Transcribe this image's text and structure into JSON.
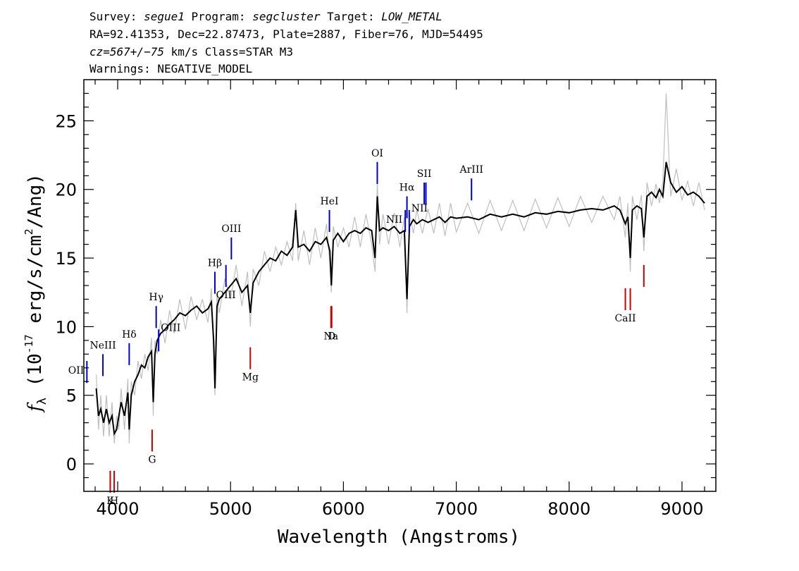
{
  "header": {
    "line1": {
      "survey_label": "Survey: ",
      "survey": "segue1",
      "program_label": " Program: ",
      "program": "segcluster",
      "target_label": " Target: ",
      "target": "LOW_METAL"
    },
    "line2": "RA=92.41353, Dec=22.87473, Plate=2887, Fiber=76, MJD=54495",
    "line3": {
      "cz": "cz=567+/−75",
      "rest": " km/s Class=STAR M3"
    },
    "line4": "Warnings: NEGATIVE_MODEL"
  },
  "chart_data": {
    "type": "line",
    "xlabel": "Wavelength (Angstroms)",
    "ylabel": "f_λ (10^-17 erg/s/cm^2/Ang)",
    "xlim": [
      3700,
      9300
    ],
    "ylim": [
      -2,
      28
    ],
    "xticks": [
      4000,
      5000,
      6000,
      7000,
      8000,
      9000
    ],
    "yticks": [
      0,
      5,
      10,
      15,
      20,
      25
    ],
    "colors": {
      "model": "#000000",
      "flux": "#bfbfbf",
      "emission": "#0000cc",
      "absorption": "#cc0000"
    },
    "series": [
      {
        "kind": "model",
        "x": [
          3810,
          3830,
          3850,
          3875,
          3900,
          3925,
          3950,
          3970,
          3990,
          4010,
          4030,
          4060,
          4090,
          4102,
          4120,
          4150,
          4180,
          4210,
          4240,
          4270,
          4300,
          4315,
          4330,
          4350,
          4380,
          4420,
          4460,
          4500,
          4550,
          4600,
          4650,
          4700,
          4750,
          4800,
          4830,
          4850,
          4862,
          4880,
          4900,
          4950,
          5000,
          5050,
          5100,
          5150,
          5175,
          5200,
          5250,
          5300,
          5350,
          5400,
          5450,
          5500,
          5550,
          5577,
          5600,
          5650,
          5700,
          5750,
          5800,
          5850,
          5880,
          5893,
          5910,
          5950,
          6000,
          6050,
          6100,
          6150,
          6200,
          6250,
          6280,
          6300,
          6320,
          6350,
          6400,
          6450,
          6500,
          6540,
          6563,
          6585,
          6620,
          6650,
          6700,
          6750,
          6800,
          6850,
          6900,
          6950,
          7000,
          7100,
          7200,
          7300,
          7400,
          7500,
          7600,
          7700,
          7800,
          7900,
          8000,
          8100,
          8200,
          8300,
          8400,
          8450,
          8498,
          8520,
          8542,
          8560,
          8600,
          8640,
          8662,
          8690,
          8730,
          8770,
          8800,
          8830,
          8860,
          8900,
          8950,
          9000,
          9050,
          9100,
          9150,
          9200
        ],
        "values": [
          5.5,
          3.5,
          4.0,
          3.0,
          4.0,
          3.0,
          3.5,
          2.2,
          2.5,
          3.5,
          4.5,
          3.5,
          5.2,
          2.5,
          5.0,
          6.0,
          6.5,
          7.2,
          7.0,
          7.8,
          8.2,
          4.5,
          8.0,
          9.0,
          9.5,
          9.8,
          10.2,
          10.5,
          11.0,
          10.8,
          11.2,
          11.5,
          11.0,
          11.3,
          11.8,
          9.0,
          5.5,
          11.5,
          12.0,
          12.5,
          13.0,
          13.5,
          12.5,
          13.0,
          11.0,
          13.2,
          14.0,
          14.5,
          15.0,
          14.8,
          15.5,
          15.2,
          15.8,
          18.5,
          15.8,
          16.0,
          15.5,
          16.2,
          16.0,
          16.5,
          15.5,
          13.0,
          16.3,
          16.8,
          16.2,
          16.8,
          17.0,
          16.8,
          17.2,
          17.0,
          15.0,
          19.5,
          17.0,
          17.2,
          17.0,
          17.3,
          16.8,
          17.0,
          12.0,
          17.3,
          17.8,
          17.5,
          17.8,
          17.6,
          17.8,
          18.0,
          17.6,
          18.0,
          17.9,
          18.0,
          17.8,
          18.2,
          18.0,
          18.2,
          18.0,
          18.3,
          18.2,
          18.4,
          18.3,
          18.5,
          18.6,
          18.5,
          18.8,
          18.5,
          17.5,
          18.0,
          15.0,
          18.5,
          18.8,
          18.6,
          16.5,
          19.5,
          19.8,
          19.4,
          20.0,
          19.5,
          22.0,
          20.5,
          19.8,
          20.2,
          19.6,
          19.8,
          19.5,
          19.0
        ]
      },
      {
        "kind": "flux",
        "x": [
          3810,
          3830,
          3850,
          3875,
          3900,
          3925,
          3950,
          3970,
          3990,
          4010,
          4030,
          4060,
          4090,
          4102,
          4120,
          4150,
          4180,
          4210,
          4240,
          4270,
          4300,
          4315,
          4330,
          4350,
          4380,
          4420,
          4460,
          4500,
          4550,
          4600,
          4650,
          4700,
          4750,
          4800,
          4830,
          4850,
          4862,
          4880,
          4900,
          4950,
          5000,
          5050,
          5100,
          5150,
          5175,
          5200,
          5250,
          5300,
          5350,
          5400,
          5450,
          5500,
          5550,
          5577,
          5600,
          5650,
          5700,
          5750,
          5800,
          5850,
          5880,
          5893,
          5910,
          5950,
          6000,
          6050,
          6100,
          6150,
          6200,
          6250,
          6280,
          6300,
          6320,
          6350,
          6400,
          6450,
          6500,
          6540,
          6563,
          6585,
          6620,
          6650,
          6700,
          6750,
          6800,
          6850,
          6900,
          6950,
          7000,
          7100,
          7200,
          7300,
          7400,
          7500,
          7600,
          7700,
          7800,
          7900,
          8000,
          8100,
          8200,
          8300,
          8400,
          8450,
          8498,
          8520,
          8542,
          8560,
          8600,
          8640,
          8662,
          8690,
          8730,
          8770,
          8800,
          8830,
          8860,
          8900,
          8950,
          9000,
          9050,
          9100,
          9150,
          9200
        ],
        "values": [
          6.5,
          2.5,
          5.0,
          2.0,
          5.0,
          2.0,
          4.5,
          1.5,
          3.5,
          2.5,
          5.5,
          2.5,
          6.2,
          1.5,
          6.0,
          5.0,
          7.5,
          6.2,
          8.0,
          6.8,
          9.2,
          3.5,
          9.0,
          8.0,
          10.5,
          8.8,
          11.2,
          9.5,
          12.0,
          9.8,
          12.2,
          10.5,
          12.0,
          10.3,
          12.8,
          8.0,
          5.0,
          12.5,
          11.0,
          13.5,
          12.0,
          14.5,
          11.5,
          14.0,
          10.0,
          14.2,
          13.0,
          15.5,
          14.0,
          15.8,
          14.5,
          16.2,
          14.8,
          19.0,
          14.8,
          17.0,
          14.5,
          17.2,
          15.0,
          17.5,
          14.5,
          12.5,
          17.3,
          15.8,
          17.2,
          15.8,
          18.0,
          15.8,
          18.2,
          16.0,
          14.0,
          20.5,
          16.0,
          18.2,
          16.0,
          18.3,
          15.8,
          18.0,
          11.0,
          18.3,
          16.8,
          18.5,
          16.8,
          18.6,
          16.8,
          19.0,
          16.6,
          19.0,
          16.9,
          19.0,
          16.8,
          19.2,
          17.0,
          19.2,
          17.0,
          19.3,
          17.2,
          19.4,
          17.3,
          19.5,
          17.6,
          19.5,
          17.8,
          19.5,
          16.5,
          19.0,
          14.0,
          19.5,
          17.8,
          19.6,
          15.5,
          20.5,
          18.8,
          20.4,
          19.0,
          20.5,
          27.0,
          19.5,
          21.5,
          19.2,
          20.6,
          18.8,
          20.5,
          18.5
        ]
      }
    ],
    "annotations": [
      {
        "label": "OII",
        "x": 3727,
        "y": 7.5,
        "kind": "emission",
        "pos": "left"
      },
      {
        "label": "NeIII",
        "x": 3869,
        "y": 8.0,
        "kind": "emission",
        "pos": "above"
      },
      {
        "label": "Hδ",
        "x": 4102,
        "y": 8.8,
        "kind": "emission",
        "pos": "above"
      },
      {
        "label": "Hγ",
        "x": 4341,
        "y": 11.5,
        "kind": "emission",
        "pos": "above"
      },
      {
        "label": "OIII",
        "x": 4363,
        "y": 9.8,
        "kind": "emission",
        "pos": "right"
      },
      {
        "label": "Hβ",
        "x": 4861,
        "y": 14.0,
        "kind": "emission",
        "pos": "above"
      },
      {
        "label": "OIII",
        "x": 4959,
        "y": 14.5,
        "kind": "emission",
        "pos": "below"
      },
      {
        "label": "OIII",
        "x": 5007,
        "y": 16.5,
        "kind": "emission",
        "pos": "above"
      },
      {
        "label": "HeI",
        "x": 5876,
        "y": 18.5,
        "kind": "emission",
        "pos": "above"
      },
      {
        "label": "OI",
        "x": 6300,
        "y": 22.0,
        "kind": "emission",
        "pos": "above"
      },
      {
        "label": "NII",
        "x": 6548,
        "y": 18.5,
        "kind": "emission",
        "pos": "left"
      },
      {
        "label": "Hα",
        "x": 6563,
        "y": 19.5,
        "kind": "emission",
        "pos": "above"
      },
      {
        "label": "NII",
        "x": 6583,
        "y": 18.5,
        "kind": "emission",
        "pos": "right"
      },
      {
        "label": "SII",
        "x": 6716,
        "y": 20.5,
        "kind": "emission",
        "pos": "above"
      },
      {
        "label": "",
        "x": 6731,
        "y": 20.5,
        "kind": "emission",
        "pos": "none"
      },
      {
        "label": "ArIII",
        "x": 7135,
        "y": 20.8,
        "kind": "emission",
        "pos": "above"
      },
      {
        "label": "K",
        "x": 3934,
        "y": -0.5,
        "kind": "absorption",
        "pos": "below"
      },
      {
        "label": "H",
        "x": 3969,
        "y": -0.5,
        "kind": "absorption",
        "pos": "below"
      },
      {
        "label": "G",
        "x": 4305,
        "y": 2.5,
        "kind": "absorption",
        "pos": "below"
      },
      {
        "label": "Mg",
        "x": 5175,
        "y": 8.5,
        "kind": "absorption",
        "pos": "below"
      },
      {
        "label": "Na",
        "x": 5890,
        "y": 11.5,
        "kind": "absorption",
        "pos": "below"
      },
      {
        "label": "D",
        "x": 5896,
        "y": 11.5,
        "kind": "absorption",
        "pos": "below"
      },
      {
        "label": "CaII",
        "x": 8498,
        "y": 12.8,
        "kind": "absorption",
        "pos": "below"
      },
      {
        "label": "",
        "x": 8542,
        "y": 12.8,
        "kind": "absorption",
        "pos": "none"
      },
      {
        "label": "",
        "x": 8662,
        "y": 14.5,
        "kind": "absorption",
        "pos": "none"
      }
    ]
  }
}
